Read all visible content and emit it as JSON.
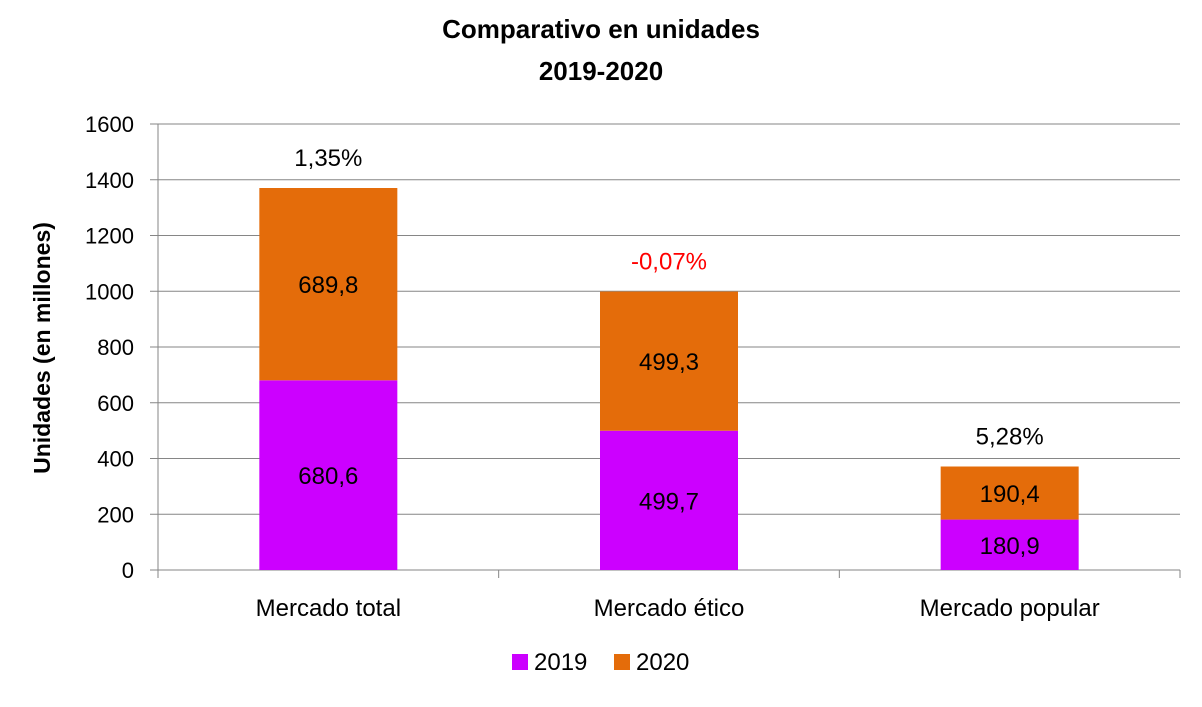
{
  "chart_data": {
    "type": "bar",
    "stacked": true,
    "title": [
      "Comparativo en unidades",
      "2019-2020"
    ],
    "xlabel": "",
    "ylabel": "Unidades (en millones)",
    "ylim": [
      0,
      1600
    ],
    "yticks": [
      "0",
      "200",
      "400",
      "600",
      "800",
      "1000",
      "1200",
      "1400",
      "1600"
    ],
    "categories": [
      "Mercado total",
      "Mercado ético",
      "Mercado popular"
    ],
    "series": [
      {
        "name": "2019",
        "color": "#cc00ff",
        "values": [
          680.6,
          499.7,
          180.9
        ],
        "labels": [
          "680,6",
          "499,7",
          "180,9"
        ]
      },
      {
        "name": "2020",
        "color": "#e46c0a",
        "values": [
          689.8,
          499.3,
          190.4
        ],
        "labels": [
          "689,8",
          "499,3",
          "190,4"
        ]
      }
    ],
    "annotations": [
      {
        "text": "1,35%",
        "color": "#000000"
      },
      {
        "text": "-0,07%",
        "color": "#ff0000"
      },
      {
        "text": "5,28%",
        "color": "#000000"
      }
    ],
    "grid": true,
    "legend": "bottom"
  }
}
